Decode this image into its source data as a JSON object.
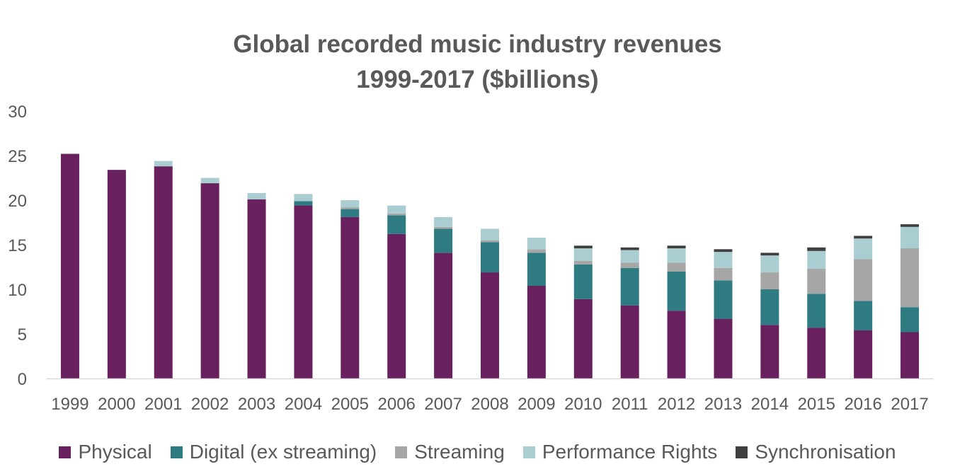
{
  "chart_data": {
    "type": "bar",
    "stacked": true,
    "title_line1": "Global recorded music industry revenues",
    "title_line2": "1999-2017 ($billions)",
    "xlabel": "",
    "ylabel": "",
    "ylim": [
      0,
      30
    ],
    "yticks": [
      "0",
      "5",
      "10",
      "15",
      "20",
      "25",
      "30"
    ],
    "grid": false,
    "legend_position": "bottom",
    "categories": [
      "1999",
      "2000",
      "2001",
      "2002",
      "2003",
      "2004",
      "2005",
      "2006",
      "2007",
      "2008",
      "2009",
      "2010",
      "2011",
      "2012",
      "2013",
      "2014",
      "2015",
      "2016",
      "2017"
    ],
    "series": [
      {
        "name": "Physical",
        "color": "#68205E",
        "values": [
          25.2,
          23.4,
          23.8,
          21.9,
          20.1,
          19.4,
          18.1,
          16.2,
          14.1,
          11.9,
          10.4,
          8.9,
          8.2,
          7.6,
          6.7,
          6.0,
          5.7,
          5.4,
          5.2
        ]
      },
      {
        "name": "Digital (ex streaming)",
        "color": "#2E7B82",
        "values": [
          0,
          0,
          0,
          0,
          0,
          0.5,
          0.9,
          2.1,
          2.7,
          3.4,
          3.7,
          3.9,
          4.2,
          4.4,
          4.3,
          4.0,
          3.8,
          3.3,
          2.8
        ]
      },
      {
        "name": "Streaming",
        "color": "#A6A6A6",
        "values": [
          0,
          0,
          0,
          0,
          0,
          0,
          0.2,
          0.2,
          0.2,
          0.2,
          0.4,
          0.4,
          0.6,
          1.0,
          1.4,
          1.9,
          2.8,
          4.7,
          6.6
        ]
      },
      {
        "name": "Performance Rights",
        "color": "#A9CDD1",
        "values": [
          0,
          0,
          0.6,
          0.6,
          0.7,
          0.8,
          0.8,
          0.9,
          1.1,
          1.3,
          1.3,
          1.4,
          1.4,
          1.6,
          1.8,
          1.9,
          2.0,
          2.3,
          2.4
        ]
      },
      {
        "name": "Synchronisation",
        "color": "#404040",
        "values": [
          0,
          0,
          0,
          0,
          0,
          0,
          0,
          0,
          0,
          0,
          0,
          0.3,
          0.3,
          0.3,
          0.3,
          0.3,
          0.4,
          0.3,
          0.3
        ]
      }
    ],
    "colors": {
      "axis_text": "#595959",
      "axis_line": "#D9D9D9"
    }
  }
}
